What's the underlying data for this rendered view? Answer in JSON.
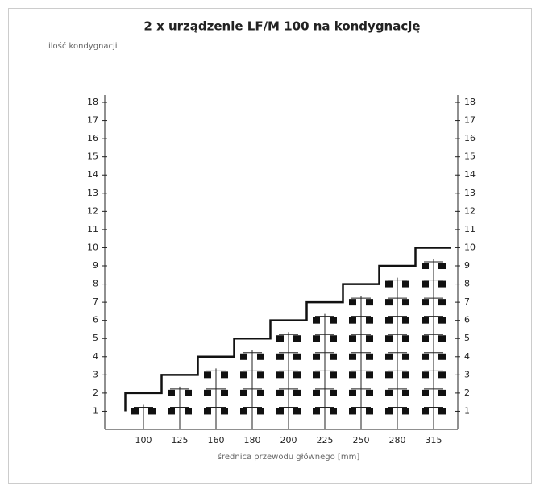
{
  "chart_data": {
    "type": "step-stack",
    "title": "2 x urządzenie LF/M 100 na kondygnację",
    "y_label": "ilość kondygnacji",
    "x_label": "średnica przewodu głównego [mm]",
    "categories": [
      "100",
      "125",
      "160",
      "180",
      "200",
      "225",
      "250",
      "280",
      "315"
    ],
    "values": [
      1,
      2,
      3,
      4,
      5,
      6,
      7,
      8,
      9
    ],
    "max_values": [
      2,
      3,
      4,
      5,
      6,
      7,
      8,
      9,
      10
    ],
    "color": "#111111",
    "ylim": [
      0,
      18.4
    ],
    "yticks": [
      1,
      2,
      3,
      4,
      5,
      6,
      7,
      8,
      9,
      10,
      11,
      12,
      13,
      14,
      15,
      16,
      17,
      18
    ]
  }
}
